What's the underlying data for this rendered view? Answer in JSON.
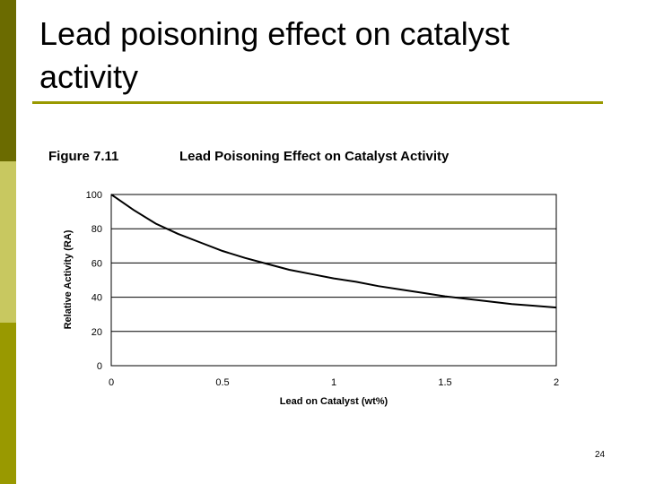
{
  "slide": {
    "title": "Lead poisoning effect on catalyst activity",
    "page_number": "24"
  },
  "figure": {
    "number": "Figure 7.11",
    "title": "Lead Poisoning Effect on Catalyst Activity"
  },
  "colors": {
    "accent": "#999900",
    "sidebar_dark": "#6b6b00",
    "sidebar_light": "#c8c860",
    "curve": "#000000"
  },
  "chart_data": {
    "type": "line",
    "title": "Lead Poisoning Effect on Catalyst Activity",
    "xlabel": "Lead on Catalyst  (wt%)",
    "ylabel": "Relative Activity (RA)",
    "xlim": [
      0,
      2
    ],
    "ylim": [
      0,
      100
    ],
    "x_ticks": [
      "0",
      "0.5",
      "1",
      "1.5",
      "2"
    ],
    "y_ticks": [
      "0",
      "20",
      "40",
      "60",
      "80",
      "100"
    ],
    "grid": "horizontal",
    "series": [
      {
        "x": [
          0,
          0.1,
          0.2,
          0.3,
          0.4,
          0.5,
          0.6,
          0.7,
          0.8,
          0.9,
          1.0,
          1.1,
          1.2,
          1.3,
          1.4,
          1.5,
          1.6,
          1.7,
          1.8,
          1.9,
          2.0
        ],
        "values": [
          100,
          91,
          83,
          77,
          72,
          67,
          63,
          59.5,
          56,
          53.5,
          51,
          49,
          46.5,
          44.5,
          42.5,
          40.5,
          39,
          37.5,
          36,
          35,
          34
        ]
      }
    ]
  }
}
